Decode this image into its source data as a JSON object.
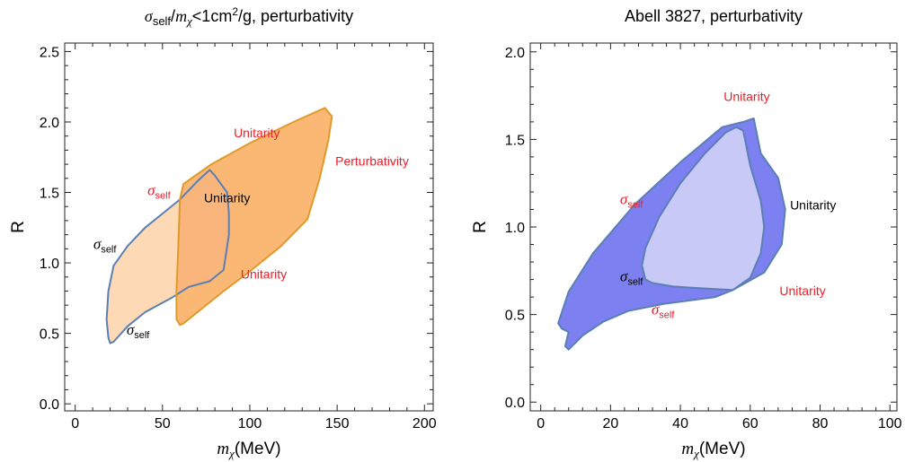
{
  "chart_data": [
    {
      "type": "area",
      "title": "σself/mχ<1cm²/g, perturbativity",
      "title_parts": {
        "sym": "σ",
        "sub": "self",
        "slash": "/",
        "m": "m",
        "chi": "χ",
        "rest": "<1cm",
        "sup": "2",
        "end": "/g, perturbativity"
      },
      "xlabel": "mχ(MeV)",
      "xlabel_parts": {
        "m": "m",
        "chi": "χ",
        "unit": "(MeV)"
      },
      "ylabel": "R",
      "xlim": [
        -6,
        205
      ],
      "ylim": [
        -0.05,
        2.56
      ],
      "xticks": [
        0,
        50,
        100,
        150,
        200
      ],
      "yticks": [
        0.0,
        0.5,
        1.0,
        1.5,
        2.0,
        2.5
      ],
      "xtick_labels": [
        "0",
        "50",
        "100",
        "150",
        "200"
      ],
      "ytick_labels": [
        "0.0",
        "0.5",
        "1.0",
        "1.5",
        "2.0",
        "2.5"
      ],
      "regions": [
        {
          "id": "sigma-self",
          "fill": "#fdd9b5",
          "stroke": "#5b7fb3",
          "points": [
            [
              20,
              0.43
            ],
            [
              22,
              0.44
            ],
            [
              30,
              0.55
            ],
            [
              40,
              0.65
            ],
            [
              55,
              0.75
            ],
            [
              65,
              0.83
            ],
            [
              77,
              0.87
            ],
            [
              85,
              0.95
            ],
            [
              88,
              1.2
            ],
            [
              88,
              1.35
            ],
            [
              87,
              1.5
            ],
            [
              80,
              1.62
            ],
            [
              77,
              1.66
            ],
            [
              70,
              1.58
            ],
            [
              60,
              1.45
            ],
            [
              50,
              1.35
            ],
            [
              40,
              1.25
            ],
            [
              30,
              1.12
            ],
            [
              22,
              0.98
            ],
            [
              19,
              0.8
            ],
            [
              18,
              0.6
            ],
            [
              19,
              0.47
            ]
          ]
        },
        {
          "id": "perturbativity",
          "fill": "#fbb874",
          "stroke": "#e09a2a",
          "points": [
            [
              60,
              0.56
            ],
            [
              62,
              0.57
            ],
            [
              70,
              0.65
            ],
            [
              85,
              0.8
            ],
            [
              100,
              0.94
            ],
            [
              118,
              1.12
            ],
            [
              133,
              1.31
            ],
            [
              140,
              1.6
            ],
            [
              145,
              1.87
            ],
            [
              147,
              2.04
            ],
            [
              143,
              2.1
            ],
            [
              125,
              2.0
            ],
            [
              100,
              1.85
            ],
            [
              78,
              1.7
            ],
            [
              62,
              1.56
            ],
            [
              60,
              1.45
            ],
            [
              59,
              1.1
            ],
            [
              58,
              0.8
            ],
            [
              58,
              0.6
            ]
          ]
        }
      ],
      "overlap": {
        "fill": "#f9b57c",
        "clip": "perturbativity",
        "inside": "sigma-self"
      },
      "annotations": [
        {
          "text": "Unitarity",
          "color": "#e8202a",
          "x": 104,
          "y": 1.89
        },
        {
          "text": "Perturbativity",
          "color": "#e8202a",
          "x": 170,
          "y": 1.69
        },
        {
          "text": "Unitarity",
          "color": "#000000",
          "x": 87,
          "y": 1.43
        },
        {
          "text": "Unitarity",
          "color": "#e8202a",
          "x": 108,
          "y": 0.89
        },
        {
          "text": "σ",
          "sub": "self",
          "color": "#e8202a",
          "x": 48,
          "y": 1.48
        },
        {
          "text": "σ",
          "sub": "self",
          "color": "#000000",
          "x": 17,
          "y": 1.1
        },
        {
          "text": "σ",
          "sub": "self",
          "color": "#000000",
          "x": 36,
          "y": 0.49
        }
      ]
    },
    {
      "type": "area",
      "title": "Abell 3827, perturbativity",
      "xlabel": "mχ(MeV)",
      "xlabel_parts": {
        "m": "m",
        "chi": "χ",
        "unit": "(MeV)"
      },
      "ylabel": "R",
      "xlim": [
        -3,
        102
      ],
      "ylim": [
        -0.05,
        2.05
      ],
      "xticks": [
        0,
        20,
        40,
        60,
        80,
        100
      ],
      "yticks": [
        0.0,
        0.5,
        1.0,
        1.5,
        2.0
      ],
      "xtick_labels": [
        "0",
        "20",
        "40",
        "60",
        "80",
        "100"
      ],
      "ytick_labels": [
        "0.0",
        "0.5",
        "1.0",
        "1.5",
        "2.0"
      ],
      "regions": [
        {
          "id": "outer",
          "fill": "#7c80f0",
          "stroke": "#5b7fb3",
          "points": [
            [
              8,
              0.3
            ],
            [
              12,
              0.38
            ],
            [
              18,
              0.46
            ],
            [
              25,
              0.52
            ],
            [
              35,
              0.56
            ],
            [
              50,
              0.6
            ],
            [
              55,
              0.64
            ],
            [
              64,
              0.74
            ],
            [
              69,
              0.9
            ],
            [
              70,
              1.1
            ],
            [
              68,
              1.28
            ],
            [
              63,
              1.42
            ],
            [
              61,
              1.62
            ],
            [
              58,
              1.6
            ],
            [
              52,
              1.57
            ],
            [
              40,
              1.37
            ],
            [
              27,
              1.13
            ],
            [
              15,
              0.85
            ],
            [
              8,
              0.63
            ],
            [
              5,
              0.45
            ],
            [
              6,
              0.42
            ],
            [
              8,
              0.4
            ],
            [
              7,
              0.32
            ]
          ]
        },
        {
          "id": "inner",
          "fill": "#c8c9f6",
          "stroke": "#5b7fb3",
          "points": [
            [
              30,
              0.7
            ],
            [
              32,
              0.68
            ],
            [
              38,
              0.66
            ],
            [
              50,
              0.645
            ],
            [
              55,
              0.64
            ],
            [
              60,
              0.71
            ],
            [
              63,
              0.85
            ],
            [
              64,
              1.0
            ],
            [
              63,
              1.15
            ],
            [
              60,
              1.35
            ],
            [
              58,
              1.55
            ],
            [
              56,
              1.57
            ],
            [
              53,
              1.54
            ],
            [
              47,
              1.42
            ],
            [
              40,
              1.25
            ],
            [
              34,
              1.06
            ],
            [
              30,
              0.88
            ],
            [
              29,
              0.78
            ]
          ]
        }
      ],
      "annotations": [
        {
          "text": "Unitarity",
          "color": "#e8202a",
          "x": 59,
          "y": 1.72
        },
        {
          "text": "Unitarity",
          "color": "#000000",
          "x": 78,
          "y": 1.1
        },
        {
          "text": "Unitarity",
          "color": "#e8202a",
          "x": 75,
          "y": 0.61
        },
        {
          "text": "σ",
          "sub": "self",
          "color": "#e8202a",
          "x": 26,
          "y": 1.13
        },
        {
          "text": "σ",
          "sub": "self",
          "color": "#000000",
          "x": 26,
          "y": 0.69
        },
        {
          "text": "σ",
          "sub": "self",
          "color": "#e8202a",
          "x": 35,
          "y": 0.5
        }
      ]
    }
  ]
}
